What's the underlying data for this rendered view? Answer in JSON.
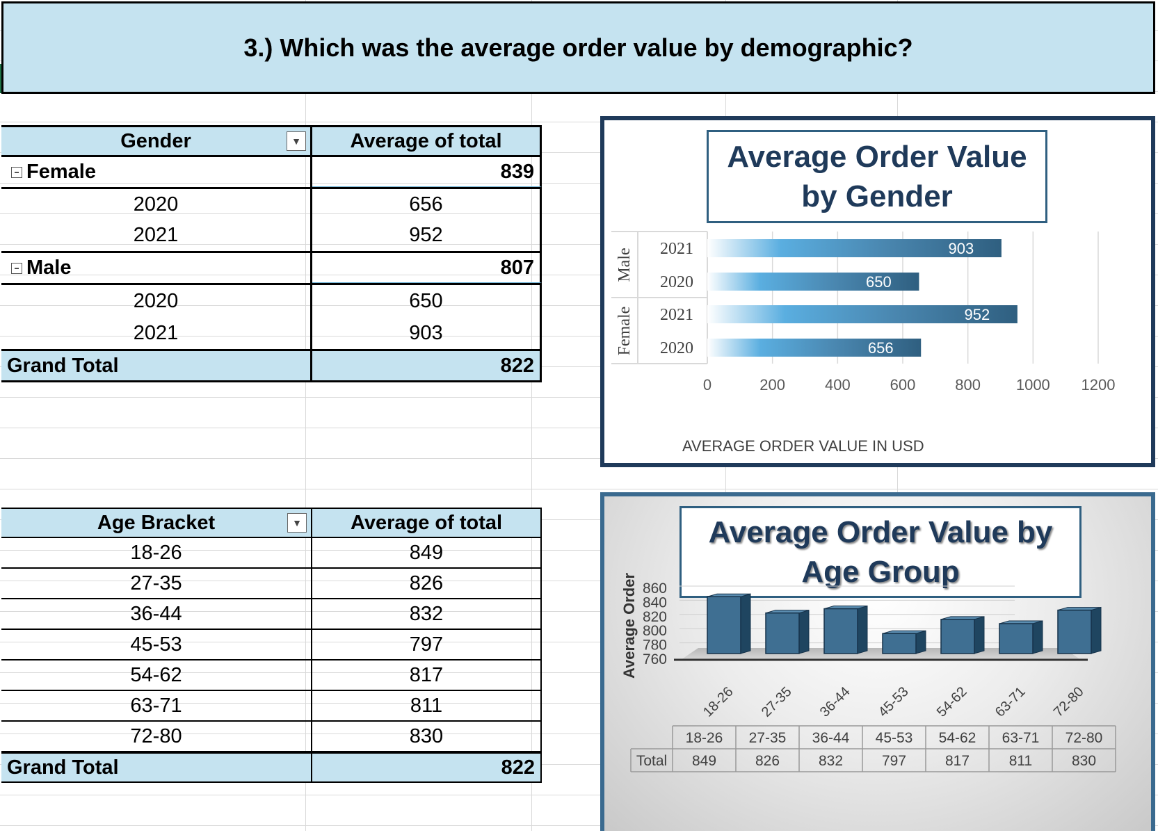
{
  "header": {
    "question": "3.) Which was the average order value by demographic?"
  },
  "gender_table": {
    "col1_header": "Gender",
    "col2_header": "Average of total",
    "filter_icon": "dropdown-arrow-icon",
    "groups": [
      {
        "label": "Female",
        "total": "839",
        "rows": [
          {
            "year": "2020",
            "value": "656"
          },
          {
            "year": "2021",
            "value": "952"
          }
        ]
      },
      {
        "label": "Male",
        "total": "807",
        "rows": [
          {
            "year": "2020",
            "value": "650"
          },
          {
            "year": "2021",
            "value": "903"
          }
        ]
      }
    ],
    "grand_total_label": "Grand Total",
    "grand_total_value": "822"
  },
  "age_table": {
    "col1_header": "Age Bracket",
    "col2_header": "Average of total",
    "rows": [
      {
        "bracket": "18-26",
        "value": "849"
      },
      {
        "bracket": "27-35",
        "value": "826"
      },
      {
        "bracket": "36-44",
        "value": "832"
      },
      {
        "bracket": "45-53",
        "value": "797"
      },
      {
        "bracket": "54-62",
        "value": "817"
      },
      {
        "bracket": "63-71",
        "value": "811"
      },
      {
        "bracket": "72-80",
        "value": "830"
      }
    ],
    "grand_total_label": "Grand Total",
    "grand_total_value": "822"
  },
  "colors": {
    "header_fill": "#c5e3f0",
    "chart_border_dark": "#1f3a5a",
    "bar_dark": "#2f5f80",
    "bar_light": "#5aaee0"
  },
  "chart_data": [
    {
      "type": "bar",
      "orientation": "horizontal",
      "title": "Average Order Value by Gender",
      "xlabel": "AVERAGE ORDER VALUE IN USD",
      "ylabel": "",
      "xlim": [
        0,
        1200
      ],
      "xticks": [
        "0",
        "200",
        "400",
        "600",
        "800",
        "1000",
        "1200"
      ],
      "groups": [
        "Male",
        "Female"
      ],
      "categories": [
        {
          "group": "Male",
          "year": "2021",
          "value": 903
        },
        {
          "group": "Male",
          "year": "2020",
          "value": 650
        },
        {
          "group": "Female",
          "year": "2021",
          "value": 952
        },
        {
          "group": "Female",
          "year": "2020",
          "value": 656
        }
      ],
      "grid": true,
      "legend": "none"
    },
    {
      "type": "bar",
      "orientation": "vertical-3d",
      "title": "Average Order Value by Age Group",
      "ylabel": "Average Order",
      "ylim": [
        760,
        860
      ],
      "yticks": [
        "860",
        "840",
        "820",
        "800",
        "780",
        "760"
      ],
      "categories": [
        "18-26",
        "27-35",
        "36-44",
        "45-53",
        "54-62",
        "63-71",
        "72-80"
      ],
      "values": [
        849,
        826,
        832,
        797,
        817,
        811,
        830
      ],
      "data_table": {
        "row_label": "Total"
      },
      "legend": "none"
    }
  ]
}
